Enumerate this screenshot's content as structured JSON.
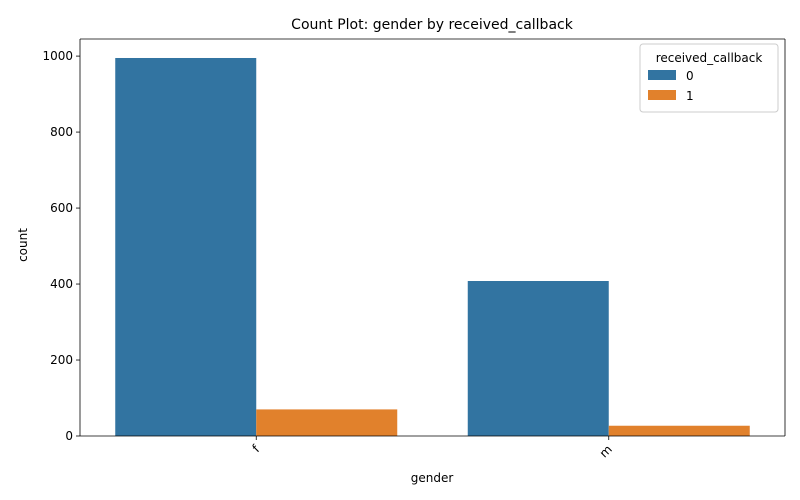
{
  "chart_data": {
    "type": "bar",
    "title": "Count Plot: gender by received_callback",
    "xlabel": "gender",
    "ylabel": "count",
    "categories": [
      "f",
      "m"
    ],
    "series": [
      {
        "name": "0",
        "values": [
          995,
          408
        ],
        "color": "#3274a1"
      },
      {
        "name": "1",
        "values": [
          70,
          27
        ],
        "color": "#e1812c"
      }
    ],
    "ylim": [
      0,
      1045
    ],
    "yticks": [
      0,
      200,
      400,
      600,
      800,
      1000
    ],
    "legend": {
      "title": "received_callback",
      "placement": "top-right"
    },
    "grid": false,
    "xtick_rotation": "45 degrees"
  }
}
